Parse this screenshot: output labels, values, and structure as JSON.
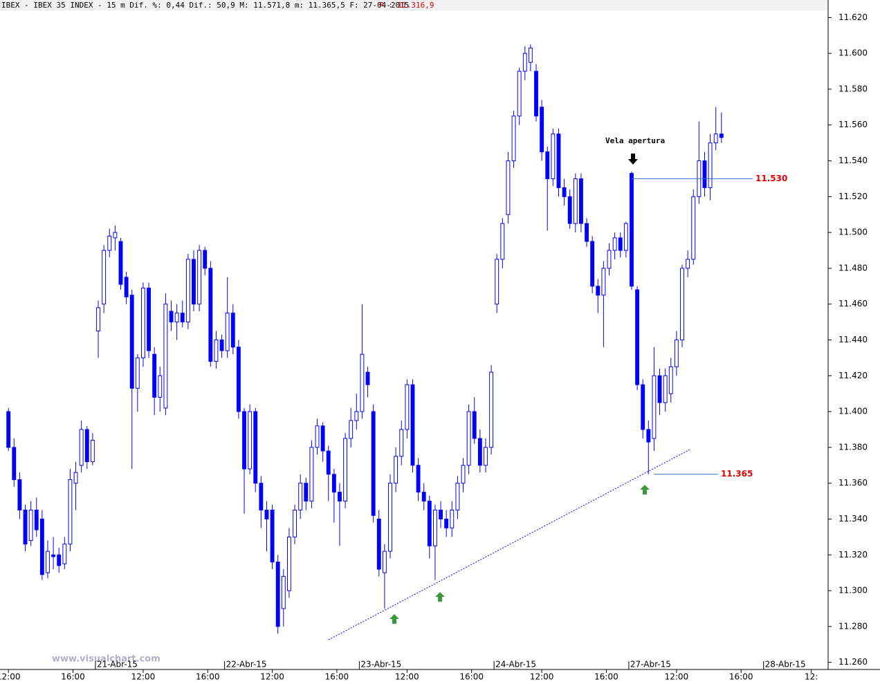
{
  "header": {
    "text": "IBEX - IBEX 35 INDEX -  15 m Dif. %: 0,44 Dif.: 50,9 M: 11.571,8 m: 11.365,5 F: 27-04-2015",
    "price": "P : 11.316,9"
  },
  "watermark": "www.visualchart.com",
  "chart_data": {
    "type": "candlestick",
    "up_color": "#ffffff",
    "down_color": "#0000ff",
    "wick_color": "#0000ff",
    "ylim": [
      11.256,
      11.624
    ],
    "yticks": [
      {
        "value": 11.26,
        "label": "11.260"
      },
      {
        "value": 11.28,
        "label": "11.280"
      },
      {
        "value": 11.3,
        "label": "11.300"
      },
      {
        "value": 11.32,
        "label": "11.320"
      },
      {
        "value": 11.34,
        "label": "11.340"
      },
      {
        "value": 11.36,
        "label": "11.360"
      },
      {
        "value": 11.38,
        "label": "11.380"
      },
      {
        "value": 11.4,
        "label": "11.400"
      },
      {
        "value": 11.42,
        "label": "11.420"
      },
      {
        "value": 11.44,
        "label": "11.440"
      },
      {
        "value": 11.46,
        "label": "11.460"
      },
      {
        "value": 11.48,
        "label": "11.480"
      },
      {
        "value": 11.5,
        "label": "11.500"
      },
      {
        "value": 11.52,
        "label": "11.520"
      },
      {
        "value": 11.54,
        "label": "11.540"
      },
      {
        "value": 11.56,
        "label": "11.560"
      },
      {
        "value": 11.58,
        "label": "11.580"
      },
      {
        "value": 11.6,
        "label": "11.600"
      },
      {
        "value": 11.62,
        "label": "11.620"
      }
    ],
    "xlim": [
      -1.5,
      146
    ],
    "xticks": [
      {
        "value": 0,
        "label": "12:00"
      },
      {
        "value": 11.5,
        "label": "16:00"
      },
      {
        "value": 24,
        "label": "12:00"
      },
      {
        "value": 35.5,
        "label": "16:00"
      },
      {
        "value": 47,
        "label": "12:00"
      },
      {
        "value": 58.5,
        "label": "16:00"
      },
      {
        "value": 71,
        "label": "12:00"
      },
      {
        "value": 82.5,
        "label": "16:00"
      },
      {
        "value": 95,
        "label": "12:00"
      },
      {
        "value": 106.5,
        "label": "16:00"
      },
      {
        "value": 119,
        "label": "12:00"
      },
      {
        "value": 130.5,
        "label": "16:00"
      },
      {
        "value": 143,
        "label": "12:"
      }
    ],
    "date_ticks": [
      {
        "value": 15.5,
        "label": "21-Abr-15"
      },
      {
        "value": 38.5,
        "label": "22-Abr-15"
      },
      {
        "value": 62.5,
        "label": "23-Abr-15"
      },
      {
        "value": 86.5,
        "label": "24-Abr-15"
      },
      {
        "value": 110.5,
        "label": "27-Abr-15"
      },
      {
        "value": 134.5,
        "label": "28-Abr-15"
      }
    ],
    "annotation": "Vela apertura",
    "price_lines": [
      {
        "value": 11.53,
        "label": "11.530"
      },
      {
        "value": 11.365,
        "label": "11.365"
      }
    ],
    "candles": [
      [
        11.4,
        11.402,
        11.378,
        11.38
      ],
      [
        11.38,
        11.385,
        11.358,
        11.362
      ],
      [
        11.362,
        11.366,
        11.34,
        11.345
      ],
      [
        11.345,
        11.348,
        11.322,
        11.326
      ],
      [
        11.328,
        11.35,
        11.325,
        11.345
      ],
      [
        11.345,
        11.352,
        11.33,
        11.334
      ],
      [
        11.34,
        11.345,
        11.306,
        11.309
      ],
      [
        11.31,
        11.328,
        11.307,
        11.322
      ],
      [
        11.32,
        11.33,
        11.312,
        11.319
      ],
      [
        11.32,
        11.324,
        11.31,
        11.314
      ],
      [
        11.315,
        11.33,
        11.312,
        11.326
      ],
      [
        11.326,
        11.368,
        11.322,
        11.362
      ],
      [
        11.36,
        11.372,
        11.345,
        11.366
      ],
      [
        11.37,
        11.395,
        11.366,
        11.39
      ],
      [
        11.39,
        11.392,
        11.368,
        11.372
      ],
      [
        11.372,
        11.388,
        11.37,
        11.384
      ],
      [
        11.445,
        11.462,
        11.43,
        11.458
      ],
      [
        11.46,
        11.493,
        11.455,
        11.49
      ],
      [
        11.49,
        11.502,
        11.486,
        11.498
      ],
      [
        11.497,
        11.504,
        11.49,
        11.5
      ],
      [
        11.495,
        11.497,
        11.468,
        11.471
      ],
      [
        11.475,
        11.478,
        11.46,
        11.464
      ],
      [
        11.465,
        11.468,
        11.368,
        11.413
      ],
      [
        11.413,
        11.432,
        11.4,
        11.43
      ],
      [
        11.43,
        11.472,
        11.425,
        11.469
      ],
      [
        11.469,
        11.472,
        11.43,
        11.434
      ],
      [
        11.432,
        11.436,
        11.398,
        11.408
      ],
      [
        11.408,
        11.425,
        11.4,
        11.42
      ],
      [
        11.402,
        11.466,
        11.398,
        11.46
      ],
      [
        11.456,
        11.462,
        11.445,
        11.45
      ],
      [
        11.45,
        11.46,
        11.44,
        11.455
      ],
      [
        11.455,
        11.462,
        11.447,
        11.45
      ],
      [
        11.45,
        11.488,
        11.446,
        11.485
      ],
      [
        11.485,
        11.49,
        11.456,
        11.46
      ],
      [
        11.46,
        11.493,
        11.456,
        11.49
      ],
      [
        11.49,
        11.492,
        11.476,
        11.48
      ],
      [
        11.48,
        11.484,
        11.425,
        11.428
      ],
      [
        11.428,
        11.445,
        11.424,
        11.44
      ],
      [
        11.44,
        11.443,
        11.43,
        11.434
      ],
      [
        11.434,
        11.475,
        11.43,
        11.455
      ],
      [
        11.455,
        11.46,
        11.432,
        11.436
      ],
      [
        11.436,
        11.44,
        11.396,
        11.4
      ],
      [
        11.4,
        11.402,
        11.343,
        11.368
      ],
      [
        11.368,
        11.404,
        11.365,
        11.4
      ],
      [
        11.4,
        11.402,
        11.355,
        11.36
      ],
      [
        11.36,
        11.364,
        11.335,
        11.345
      ],
      [
        11.345,
        11.35,
        11.322,
        11.34
      ],
      [
        11.345,
        11.348,
        11.312,
        11.316
      ],
      [
        11.316,
        11.32,
        11.276,
        11.28
      ],
      [
        11.29,
        11.312,
        11.28,
        11.308
      ],
      [
        11.3,
        11.335,
        11.296,
        11.33
      ],
      [
        11.33,
        11.348,
        11.326,
        11.345
      ],
      [
        11.345,
        11.365,
        11.34,
        11.36
      ],
      [
        11.36,
        11.363,
        11.345,
        11.35
      ],
      [
        11.35,
        11.384,
        11.346,
        11.38
      ],
      [
        11.38,
        11.396,
        11.376,
        11.392
      ],
      [
        11.392,
        11.394,
        11.372,
        11.378
      ],
      [
        11.378,
        11.381,
        11.35,
        11.365
      ],
      [
        11.365,
        11.368,
        11.338,
        11.355
      ],
      [
        11.355,
        11.36,
        11.325,
        11.35
      ],
      [
        11.35,
        11.388,
        11.346,
        11.385
      ],
      [
        11.385,
        11.402,
        11.38,
        11.395
      ],
      [
        11.395,
        11.41,
        11.39,
        11.4
      ],
      [
        11.4,
        11.46,
        11.396,
        11.432
      ],
      [
        11.422,
        11.425,
        11.408,
        11.415
      ],
      [
        11.4,
        11.404,
        11.338,
        11.342
      ],
      [
        11.34,
        11.345,
        11.308,
        11.312
      ],
      [
        11.31,
        11.326,
        11.29,
        11.322
      ],
      [
        11.322,
        11.365,
        11.318,
        11.36
      ],
      [
        11.36,
        11.38,
        11.355,
        11.375
      ],
      [
        11.375,
        11.395,
        11.37,
        11.39
      ],
      [
        11.39,
        11.418,
        11.385,
        11.415
      ],
      [
        11.415,
        11.418,
        11.366,
        11.37
      ],
      [
        11.37,
        11.374,
        11.35,
        11.355
      ],
      [
        11.355,
        11.36,
        11.345,
        11.35
      ],
      [
        11.35,
        11.353,
        11.318,
        11.325
      ],
      [
        11.325,
        11.348,
        11.306,
        11.345
      ],
      [
        11.345,
        11.35,
        11.335,
        11.34
      ],
      [
        11.34,
        11.345,
        11.33,
        11.335
      ],
      [
        11.335,
        11.35,
        11.33,
        11.345
      ],
      [
        11.345,
        11.364,
        11.34,
        11.36
      ],
      [
        11.36,
        11.374,
        11.355,
        11.37
      ],
      [
        11.37,
        11.404,
        11.365,
        11.4
      ],
      [
        11.4,
        11.408,
        11.382,
        11.385
      ],
      [
        11.385,
        11.39,
        11.366,
        11.37
      ],
      [
        11.37,
        11.385,
        11.366,
        11.38
      ],
      [
        11.38,
        11.426,
        11.376,
        11.422
      ],
      [
        11.46,
        11.488,
        11.455,
        11.485
      ],
      [
        11.485,
        11.508,
        11.48,
        11.505
      ],
      [
        11.51,
        11.545,
        11.505,
        11.54
      ],
      [
        11.54,
        11.568,
        11.536,
        11.565
      ],
      [
        11.565,
        11.592,
        11.56,
        11.59
      ],
      [
        11.59,
        11.604,
        11.585,
        11.6
      ],
      [
        11.595,
        11.605,
        11.59,
        11.603
      ],
      [
        11.59,
        11.594,
        11.562,
        11.565
      ],
      [
        11.57,
        11.574,
        11.54,
        11.545
      ],
      [
        11.545,
        11.548,
        11.501,
        11.53
      ],
      [
        11.53,
        11.558,
        11.526,
        11.555
      ],
      [
        11.555,
        11.558,
        11.52,
        11.525
      ],
      [
        11.525,
        11.53,
        11.515,
        11.52
      ],
      [
        11.52,
        11.524,
        11.502,
        11.505
      ],
      [
        11.505,
        11.533,
        11.5,
        11.53
      ],
      [
        11.53,
        11.533,
        11.5,
        11.505
      ],
      [
        11.505,
        11.508,
        11.492,
        11.495
      ],
      [
        11.495,
        11.498,
        11.466,
        11.47
      ],
      [
        11.47,
        11.474,
        11.455,
        11.465
      ],
      [
        11.465,
        11.484,
        11.436,
        11.48
      ],
      [
        11.48,
        11.494,
        11.476,
        11.49
      ],
      [
        11.49,
        11.5,
        11.485,
        11.497
      ],
      [
        11.497,
        11.5,
        11.486,
        11.49
      ],
      [
        11.49,
        11.506,
        11.486,
        11.505
      ],
      [
        11.533,
        11.534,
        11.468,
        11.47
      ],
      [
        11.468,
        11.47,
        11.412,
        11.415
      ],
      [
        11.415,
        11.418,
        11.385,
        11.39
      ],
      [
        11.39,
        11.395,
        11.365,
        11.383
      ],
      [
        11.385,
        11.436,
        11.378,
        11.42
      ],
      [
        11.42,
        11.424,
        11.398,
        11.405
      ],
      [
        11.405,
        11.424,
        11.4,
        11.42
      ],
      [
        11.41,
        11.43,
        11.405,
        11.425
      ],
      [
        11.425,
        11.445,
        11.42,
        11.44
      ],
      [
        11.44,
        11.482,
        11.436,
        11.48
      ],
      [
        11.48,
        11.49,
        11.475,
        11.485
      ],
      [
        11.485,
        11.524,
        11.482,
        11.52
      ],
      [
        11.52,
        11.562,
        11.516,
        11.54
      ],
      [
        11.54,
        11.545,
        11.52,
        11.525
      ],
      [
        11.525,
        11.555,
        11.518,
        11.55
      ],
      [
        11.55,
        11.57,
        11.546,
        11.555
      ],
      [
        11.555,
        11.567,
        11.55,
        11.553
      ]
    ]
  }
}
